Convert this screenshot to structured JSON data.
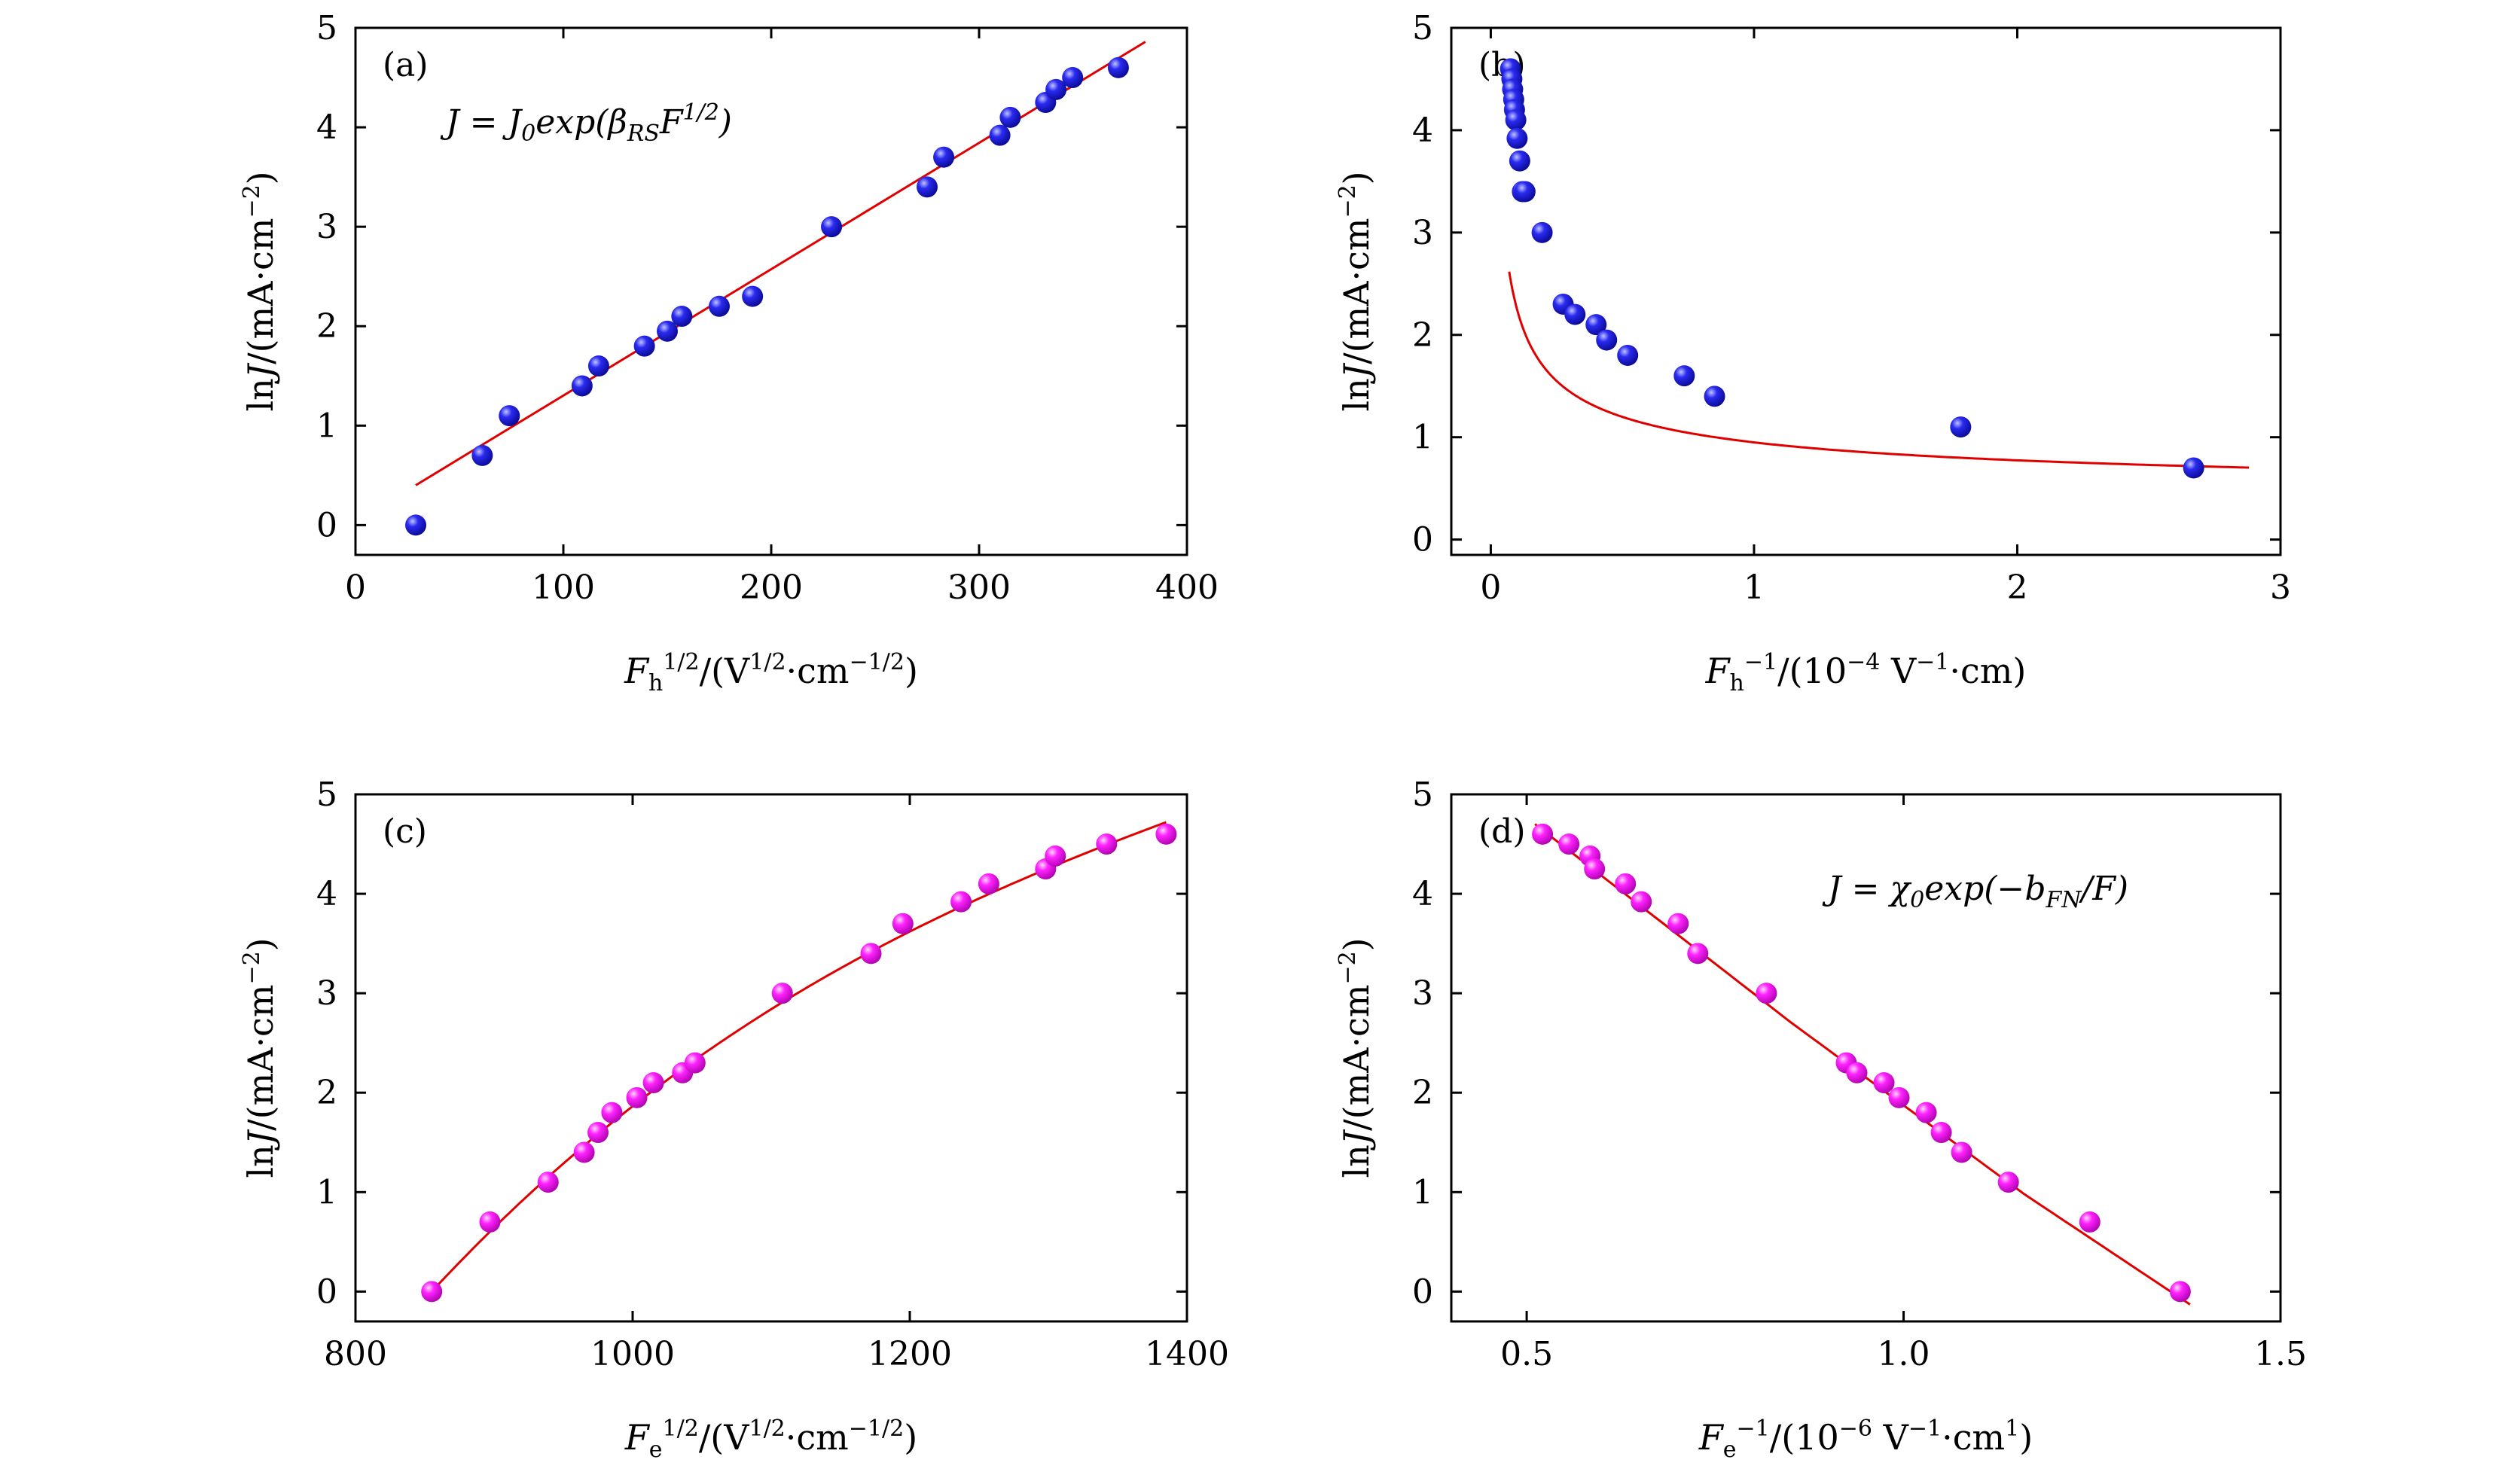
{
  "colors": {
    "fit_line": "#e00000",
    "points_blue": "#1010dd",
    "points_magenta": "#ff00ff"
  },
  "chart_data": [
    {
      "type": "scatter",
      "panel_label": "(a)",
      "annotation": "J = J₀exp(β_RS F^{1/2})",
      "xlabel": "F_h^{1/2}/(V^{1/2}·cm^{−1/2})",
      "ylabel": "lnJ/(mA·cm^{−2})",
      "xlim": [
        0,
        400
      ],
      "ylim": [
        -0.3,
        5
      ],
      "xticks": [
        0,
        100,
        200,
        300,
        400
      ],
      "yticks": [
        0,
        1,
        2,
        3,
        4,
        5
      ],
      "x_tick_labels": [
        "0",
        "100",
        "200",
        "300",
        "400"
      ],
      "y_tick_labels": [
        "0",
        "1",
        "2",
        "3",
        "4",
        "5"
      ],
      "marker_color": "blue",
      "series": [
        {
          "x": [
            29,
            61,
            74,
            109,
            117,
            139,
            150,
            157,
            175,
            191,
            229,
            275,
            283,
            310,
            315,
            332,
            337,
            345,
            367
          ],
          "y": [
            0.0,
            0.7,
            1.1,
            1.4,
            1.6,
            1.8,
            1.95,
            2.1,
            2.2,
            2.3,
            3.0,
            3.4,
            3.7,
            3.92,
            4.1,
            4.25,
            4.38,
            4.5,
            4.6
          ]
        }
      ],
      "fit": {
        "form": "linear",
        "x": [
          29,
          380
        ],
        "y": [
          0.4,
          4.86
        ]
      }
    },
    {
      "type": "scatter",
      "panel_label": "(b)",
      "annotation": "",
      "xlabel": "F_h^{−1}/(10^{−4} V^{−1}·cm)",
      "ylabel": "lnJ/(mA·cm^{−2})",
      "xlim": [
        -0.15,
        3
      ],
      "ylim": [
        -0.15,
        5
      ],
      "xticks": [
        0,
        1,
        2,
        3
      ],
      "yticks": [
        0,
        1,
        2,
        3,
        4,
        5
      ],
      "x_tick_labels": [
        "0",
        "1",
        "2",
        "3"
      ],
      "y_tick_labels": [
        "0",
        "1",
        "2",
        "3",
        "4",
        "5"
      ],
      "marker_color": "blue",
      "series": [
        {
          "x": [
            0.075,
            0.08,
            0.083,
            0.087,
            0.09,
            0.095,
            0.1,
            0.11,
            0.12,
            0.13,
            0.195,
            0.275,
            0.32,
            0.4,
            0.44,
            0.52,
            0.735,
            0.85,
            1.785,
            2.67
          ],
          "y": [
            4.6,
            4.5,
            4.4,
            4.3,
            4.2,
            4.1,
            3.92,
            3.7,
            3.4,
            3.4,
            3.0,
            2.3,
            2.2,
            2.1,
            1.95,
            1.8,
            1.6,
            1.4,
            1.1,
            0.7
          ]
        }
      ],
      "fit": {
        "form": "a/sqrt(x)+b",
        "a": 0.6,
        "b": 0.35,
        "x_range": [
          0.07,
          2.88
        ]
      }
    },
    {
      "type": "scatter",
      "panel_label": "(c)",
      "annotation": "",
      "xlabel": "F_e^{1/2}/(V^{1/2}·cm^{−1/2})",
      "ylabel": "lnJ/(mA·cm^{−2})",
      "xlim": [
        800,
        1400
      ],
      "ylim": [
        -0.3,
        5
      ],
      "xticks": [
        800,
        1000,
        1200,
        1400
      ],
      "yticks": [
        0,
        1,
        2,
        3,
        4,
        5
      ],
      "x_tick_labels": [
        "800",
        "1000",
        "1200",
        "1400"
      ],
      "y_tick_labels": [
        "0",
        "1",
        "2",
        "3",
        "4",
        "5"
      ],
      "marker_color": "magenta",
      "series": [
        {
          "x": [
            855,
            897,
            939,
            965,
            975,
            985,
            1003,
            1015,
            1036,
            1045,
            1108,
            1172,
            1195,
            1237,
            1257,
            1298,
            1305,
            1342,
            1385
          ],
          "y": [
            0.0,
            0.7,
            1.1,
            1.4,
            1.6,
            1.8,
            1.95,
            2.1,
            2.2,
            2.3,
            3.0,
            3.4,
            3.7,
            3.92,
            4.1,
            4.25,
            4.38,
            4.5,
            4.6
          ]
        }
      ],
      "fit": {
        "form": "quadratic",
        "x": [
          855,
          1030,
          1200,
          1385
        ],
        "y": [
          0.0,
          2.18,
          3.62,
          4.72
        ]
      }
    },
    {
      "type": "scatter",
      "panel_label": "(d)",
      "annotation": "J = χ₀exp(−b_FN/F)",
      "xlabel": "F_e^{−1}/(10^{−6} V^{−1}·cm^{1})",
      "ylabel": "lnJ/(mA·cm^{−2})",
      "xlim": [
        0.4,
        1.5
      ],
      "ylim": [
        -0.3,
        5
      ],
      "xticks": [
        0.5,
        1.0,
        1.5
      ],
      "yticks": [
        0,
        1,
        2,
        3,
        4,
        5
      ],
      "x_tick_labels": [
        "0.5",
        "1.0",
        "1.5"
      ],
      "y_tick_labels": [
        "0",
        "1",
        "2",
        "3",
        "4",
        "5"
      ],
      "marker_color": "magenta",
      "series": [
        {
          "x": [
            0.521,
            0.556,
            0.584,
            0.59,
            0.631,
            0.652,
            0.701,
            0.727,
            0.818,
            0.924,
            0.938,
            0.974,
            0.994,
            1.03,
            1.05,
            1.077,
            1.139,
            1.247,
            1.367
          ],
          "y": [
            4.6,
            4.5,
            4.38,
            4.25,
            4.1,
            3.92,
            3.7,
            3.4,
            3.0,
            2.3,
            2.2,
            2.1,
            1.95,
            1.8,
            1.6,
            1.4,
            1.1,
            0.7,
            0.0
          ]
        }
      ],
      "fit": {
        "form": "polyline",
        "x": [
          0.511,
          0.85,
          1.16,
          1.38
        ],
        "y": [
          4.7,
          2.71,
          0.98,
          -0.13
        ]
      }
    }
  ]
}
